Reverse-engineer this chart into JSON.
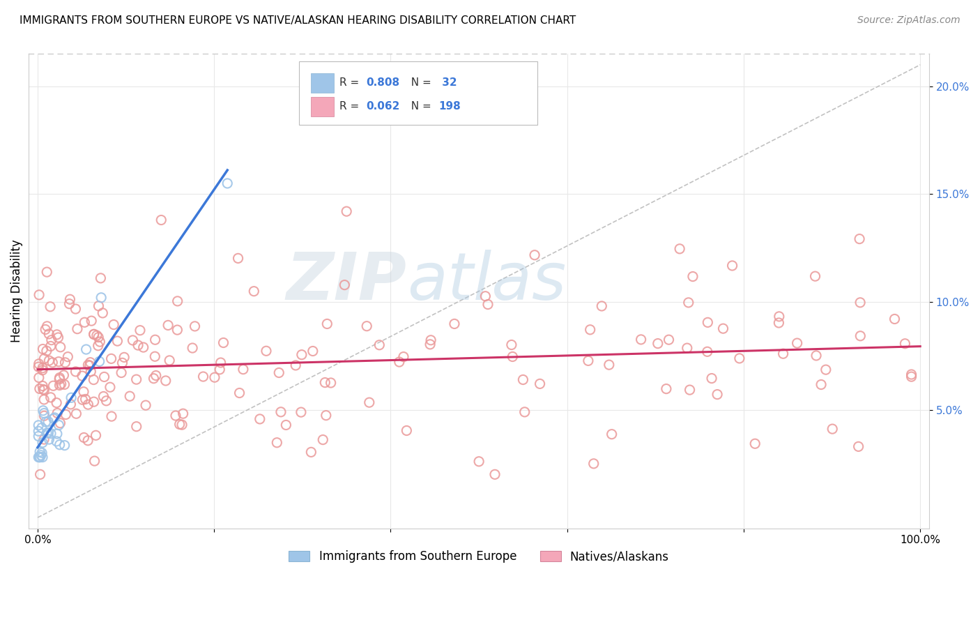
{
  "title": "IMMIGRANTS FROM SOUTHERN EUROPE VS NATIVE/ALASKAN HEARING DISABILITY CORRELATION CHART",
  "source": "Source: ZipAtlas.com",
  "ylabel": "Hearing Disability",
  "xlim": [
    -0.01,
    1.01
  ],
  "ylim": [
    -0.005,
    0.215
  ],
  "y_ticks": [
    0.05,
    0.1,
    0.15,
    0.2
  ],
  "y_tick_labels": [
    "5.0%",
    "10.0%",
    "15.0%",
    "20.0%"
  ],
  "x_ticks": [
    0.0,
    0.2,
    0.4,
    0.6,
    0.8,
    1.0
  ],
  "x_tick_labels": [
    "0.0%",
    "",
    "",
    "",
    "",
    "100.0%"
  ],
  "R1": "0.808",
  "N1": "32",
  "R2": "0.062",
  "N2": "198",
  "blue_fill": "#9fc5e8",
  "pink_fill": "#f4a7b9",
  "blue_edge": "#9fc5e8",
  "pink_edge": "#ea9999",
  "line_blue": "#3c78d8",
  "line_pink": "#cc3366",
  "diagonal_color": "#bbbbbb",
  "text_blue": "#3c78d8",
  "label1": "Immigrants from Southern Europe",
  "label2": "Natives/Alaskans",
  "watermark_zip": "ZIP",
  "watermark_atlas": "atlas",
  "grid_color": "#e8e8e8",
  "title_fontsize": 11,
  "source_fontsize": 10,
  "tick_fontsize": 11,
  "legend_fontsize": 12
}
